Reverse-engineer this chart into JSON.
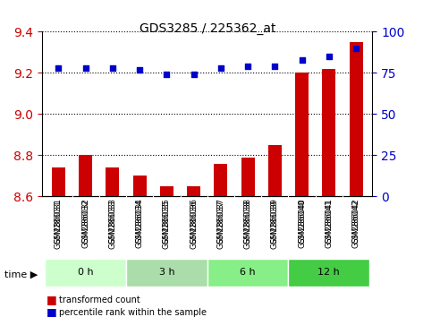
{
  "title": "GDS3285 / 225362_at",
  "samples": [
    "GSM286031",
    "GSM286032",
    "GSM286033",
    "GSM286034",
    "GSM286035",
    "GSM286036",
    "GSM286037",
    "GSM286038",
    "GSM286039",
    "GSM286040",
    "GSM286041",
    "GSM286042"
  ],
  "bar_values": [
    8.74,
    8.8,
    8.74,
    8.7,
    8.65,
    8.65,
    8.76,
    8.79,
    8.85,
    9.2,
    9.22,
    9.35
  ],
  "percentile_values": [
    78,
    78,
    78,
    77,
    74,
    74,
    78,
    79,
    79,
    83,
    85,
    90
  ],
  "bar_color": "#cc0000",
  "dot_color": "#0000cc",
  "ylim_left": [
    8.6,
    9.4
  ],
  "ylim_right": [
    0,
    100
  ],
  "yticks_left": [
    8.6,
    8.8,
    9.0,
    9.2,
    9.4
  ],
  "yticks_right": [
    0,
    25,
    50,
    75,
    100
  ],
  "groups": [
    {
      "label": "0 h",
      "start": 0,
      "end": 3,
      "color": "#ccffcc"
    },
    {
      "label": "3 h",
      "start": 3,
      "end": 6,
      "color": "#99ee99"
    },
    {
      "label": "6 h",
      "start": 6,
      "end": 9,
      "color": "#99ee99"
    },
    {
      "label": "12 h",
      "start": 9,
      "end": 12,
      "color": "#55dd55"
    }
  ],
  "group_row_colors": [
    "#ccffcc",
    "#aaddaa",
    "#99dd99",
    "#55cc55"
  ],
  "xlabel": "time",
  "bar_width": 0.5,
  "grid_linestyle": "dotted",
  "background_color": "#ffffff",
  "plot_bg_color": "#ffffff",
  "tick_label_area_color": "#dddddd"
}
